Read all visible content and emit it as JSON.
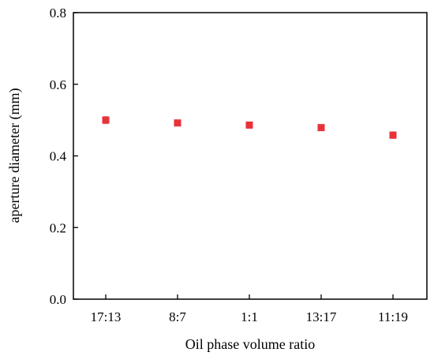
{
  "chart_data": {
    "type": "scatter",
    "title": "",
    "xlabel": "Oil phase volume ratio",
    "ylabel": "aperture diameter (mm)",
    "categories": [
      "17:13",
      "8:7",
      "1:1",
      "13:17",
      "11:19"
    ],
    "series": [
      {
        "values": [
          0.5,
          0.492,
          0.486,
          0.479,
          0.458
        ],
        "errors": [
          0.01,
          0.007,
          0.007,
          0.008,
          0.009
        ],
        "color": "#e8323a"
      }
    ],
    "ylim": [
      0.0,
      0.8
    ],
    "yticks": [
      "0.0",
      "0.2",
      "0.4",
      "0.6",
      "0.8"
    ],
    "grid": false,
    "legend": "none"
  }
}
